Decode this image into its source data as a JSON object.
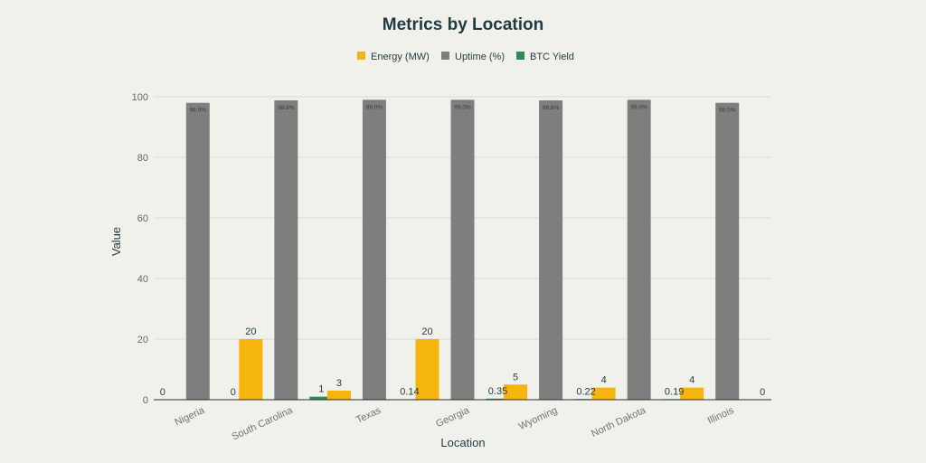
{
  "chart_data": {
    "type": "bar",
    "title": "Metrics by Location",
    "xlabel": "Location",
    "ylabel": "Value",
    "ylim": [
      0,
      100
    ],
    "yticks": [
      0,
      20,
      40,
      60,
      80,
      100
    ],
    "grid": true,
    "legend_position": "top",
    "categories": [
      "Nigeria",
      "South Carolina",
      "Texas",
      "Georgia",
      "Wyoming",
      "North Dakota",
      "Illinois"
    ],
    "series": [
      {
        "name": "Energy (MW)",
        "color": "#f6b40e",
        "values": [
          0,
          20,
          3,
          20,
          5,
          4,
          4
        ],
        "labels": [
          "0",
          "20",
          "3",
          "20",
          "5",
          "4",
          "4"
        ],
        "label_position": "outside"
      },
      {
        "name": "Uptime (%)",
        "color": "#7e7e7e",
        "values": [
          98.0,
          98.8,
          99.0,
          99.0,
          98.8,
          99.0,
          98.0
        ],
        "labels": [
          "98.0%",
          "98.8%",
          "99.0%",
          "99.0%",
          "98.8%",
          "99.0%",
          "98.0%"
        ],
        "label_position": "inside"
      },
      {
        "name": "BTC Yield",
        "color": "#2e8b57",
        "values": [
          0,
          1,
          0.14,
          0.35,
          0.22,
          0.19,
          0
        ],
        "labels": [
          "0",
          "1",
          "0.14",
          "0.35",
          "0.22",
          "0.19",
          "0"
        ],
        "label_position": "outside"
      }
    ]
  }
}
